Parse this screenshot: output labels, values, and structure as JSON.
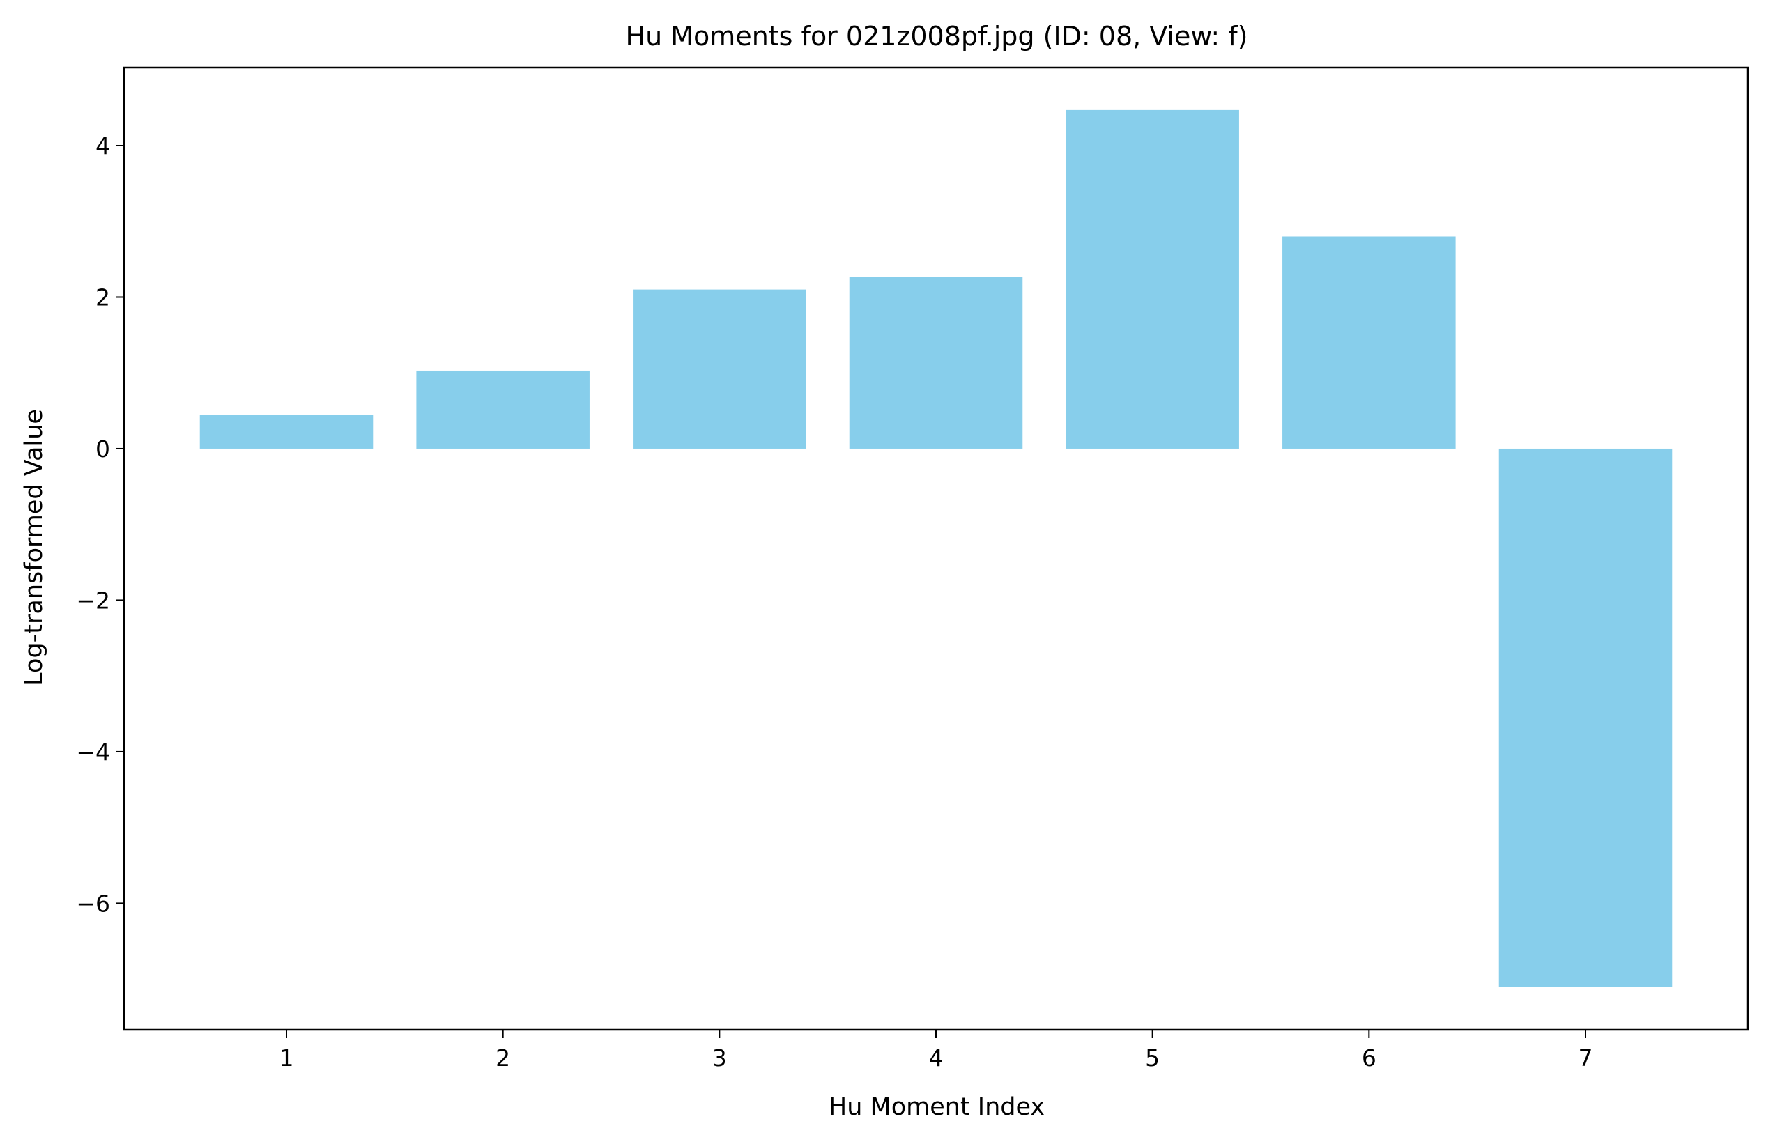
{
  "chart_data": {
    "type": "bar",
    "title": "Hu Moments for 021z008pf.jpg (ID: 08, View: f)",
    "xlabel": "Hu Moment Index",
    "ylabel": "Log-transformed Value",
    "categories": [
      "1",
      "2",
      "3",
      "4",
      "5",
      "6",
      "7"
    ],
    "x": [
      1,
      2,
      3,
      4,
      5,
      6,
      7
    ],
    "values": [
      0.45,
      1.03,
      2.1,
      2.27,
      4.47,
      2.8,
      -7.1
    ],
    "xlim": [
      0.25,
      7.75
    ],
    "ylim": [
      -7.67,
      5.03
    ],
    "yticks": [
      -6,
      -4,
      -2,
      0,
      2,
      4
    ],
    "ytick_labels": [
      "−6",
      "−4",
      "−2",
      "0",
      "2",
      "4"
    ],
    "bar_color": "#87CEEB",
    "grid": false,
    "legend": "none"
  }
}
